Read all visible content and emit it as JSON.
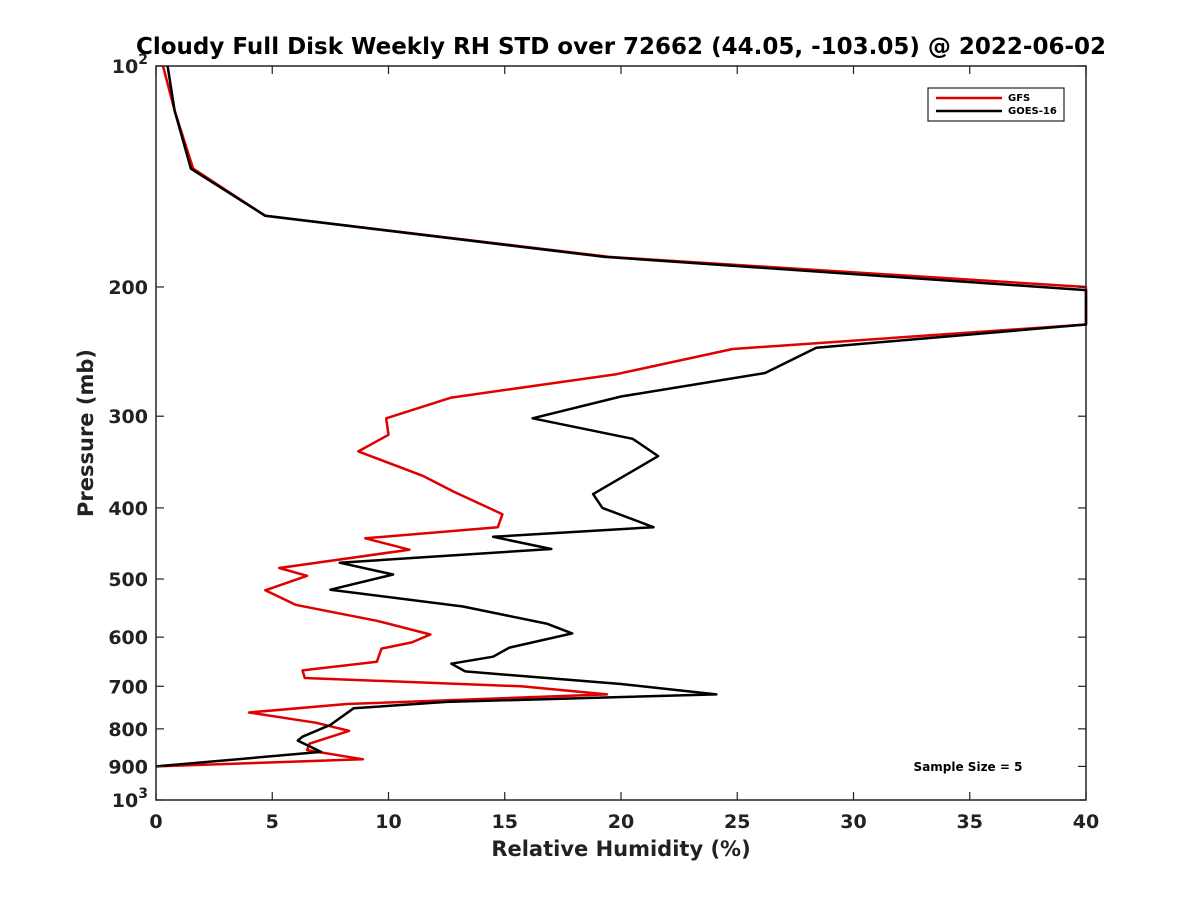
{
  "chart_data": {
    "type": "line",
    "title": "Cloudy Full Disk Weekly RH STD over 72662 (44.05, -103.05) @ 2022-06-02",
    "xlabel": "Relative Humidity (%)",
    "ylabel": "Pressure (mb)",
    "xlim": [
      0,
      40
    ],
    "ylim": [
      100,
      1000
    ],
    "y_scale": "log",
    "y_reversed": true,
    "x_ticks": [
      "0",
      "5",
      "10",
      "15",
      "20",
      "25",
      "30",
      "35",
      "40"
    ],
    "y_ticks": [
      {
        "value": 100,
        "base": "10",
        "exp": "2"
      },
      {
        "value": 200,
        "label": "200"
      },
      {
        "value": 300,
        "label": "300"
      },
      {
        "value": 400,
        "label": "400"
      },
      {
        "value": 500,
        "label": "500"
      },
      {
        "value": 600,
        "label": "600"
      },
      {
        "value": 700,
        "label": "700"
      },
      {
        "value": 800,
        "label": "800"
      },
      {
        "value": 900,
        "label": "900"
      },
      {
        "value": 1000,
        "base": "10",
        "exp": "3"
      }
    ],
    "grid": false,
    "legend_position": "top-right",
    "annotation": "Sample Size = 5",
    "series": [
      {
        "name": "GFS",
        "color": "#e00000",
        "points": [
          [
            0.3,
            100
          ],
          [
            0.8,
            115
          ],
          [
            1.6,
            138
          ],
          [
            4.7,
            160
          ],
          [
            19.5,
            182
          ],
          [
            40,
            200
          ],
          [
            40,
            225
          ],
          [
            24.8,
            243
          ],
          [
            19.8,
            263
          ],
          [
            12.7,
            283
          ],
          [
            9.9,
            302
          ],
          [
            10.0,
            318
          ],
          [
            8.7,
            335
          ],
          [
            11.5,
            362
          ],
          [
            12.8,
            380
          ],
          [
            14.9,
            408
          ],
          [
            14.7,
            425
          ],
          [
            9.0,
            440
          ],
          [
            10.9,
            456
          ],
          [
            5.3,
            483
          ],
          [
            6.5,
            495
          ],
          [
            4.7,
            518
          ],
          [
            6.0,
            542
          ],
          [
            9.5,
            570
          ],
          [
            11.8,
            595
          ],
          [
            11.0,
            610
          ],
          [
            9.7,
            622
          ],
          [
            9.5,
            648
          ],
          [
            6.3,
            666
          ],
          [
            6.4,
            682
          ],
          [
            15.7,
            700
          ],
          [
            19.4,
            718
          ],
          [
            8.2,
            740
          ],
          [
            4.0,
            760
          ],
          [
            6.9,
            785
          ],
          [
            8.3,
            805
          ],
          [
            6.6,
            838
          ],
          [
            6.5,
            855
          ],
          [
            8.9,
            880
          ],
          [
            0,
            900
          ]
        ]
      },
      {
        "name": "GOES-16",
        "color": "#000000",
        "points": [
          [
            0.5,
            100
          ],
          [
            0.8,
            115
          ],
          [
            1.5,
            138
          ],
          [
            4.7,
            160
          ],
          [
            19.3,
            182
          ],
          [
            40,
            202
          ],
          [
            40,
            225
          ],
          [
            28.4,
            242
          ],
          [
            26.2,
            262
          ],
          [
            20.0,
            282
          ],
          [
            16.2,
            302
          ],
          [
            20.5,
            322
          ],
          [
            21.6,
            340
          ],
          [
            18.8,
            383
          ],
          [
            19.2,
            400
          ],
          [
            21.4,
            425
          ],
          [
            14.5,
            438
          ],
          [
            17.0,
            455
          ],
          [
            7.9,
            475
          ],
          [
            10.2,
            493
          ],
          [
            7.5,
            517
          ],
          [
            13.2,
            545
          ],
          [
            16.8,
            575
          ],
          [
            17.9,
            593
          ],
          [
            15.2,
            620
          ],
          [
            14.5,
            638
          ],
          [
            12.7,
            652
          ],
          [
            13.3,
            668
          ],
          [
            20.0,
            695
          ],
          [
            24.1,
            718
          ],
          [
            12.5,
            735
          ],
          [
            8.5,
            750
          ],
          [
            7.5,
            790
          ],
          [
            6.3,
            820
          ],
          [
            6.1,
            830
          ],
          [
            7.1,
            860
          ],
          [
            0,
            900
          ]
        ]
      }
    ]
  }
}
